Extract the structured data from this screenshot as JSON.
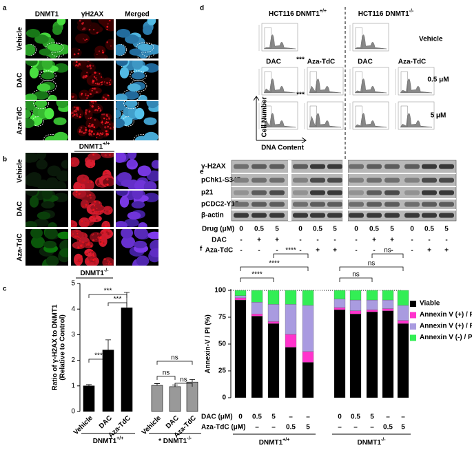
{
  "panel_labels": [
    "a",
    "b",
    "c",
    "d",
    "e",
    "f"
  ],
  "panel_a": {
    "columns": [
      "DNMT1",
      "γH2AX",
      "Merged"
    ],
    "rows": [
      "Vehicle",
      "DAC",
      "Aza-TdC"
    ],
    "caption": {
      "base": "DNMT1",
      "sup": "+/+"
    }
  },
  "panel_b": {
    "rows": [
      "Vehicle",
      "DAC",
      "Aza-TdC"
    ],
    "caption": {
      "base": "DNMT1",
      "sup": "-/-"
    }
  },
  "chart_data": [
    {
      "type": "bar",
      "y_label": "Ratio of γ-H2AX to DNMT1",
      "y_label_2": "(Relative to Control)",
      "categories": [
        "Vehicle",
        "DAC",
        "Aza-TdC",
        "Vehicle",
        "DAC",
        "Aza-TdC"
      ],
      "values": [
        1.0,
        2.4,
        4.05,
        1.02,
        0.97,
        1.15
      ],
      "errors": [
        0.05,
        0.4,
        0.6,
        0.07,
        0.06,
        0.1
      ],
      "colors": [
        "#000000",
        "#000000",
        "#000000",
        "#999999",
        "#999999",
        "#999999"
      ],
      "ylim": [
        0,
        5
      ],
      "yticks": [
        0,
        1,
        2,
        3,
        4,
        5
      ],
      "groups": [
        {
          "base": "DNMT1",
          "sup": "+/+"
        },
        {
          "base": "* DNMT1",
          "sup": "-/-"
        }
      ],
      "annotations": [
        "***",
        "***",
        "***",
        "ns",
        "ns",
        "ns"
      ]
    },
    {
      "type": "stacked_bar",
      "y_label": "Annexin-V / PI (%)",
      "ylim": [
        0,
        100
      ],
      "yticks": [
        0,
        25,
        50,
        75,
        100
      ],
      "series": [
        {
          "name": "Viable",
          "color": "#000000",
          "values": [
            91,
            76,
            69,
            47,
            33,
            82,
            78,
            80,
            81,
            69
          ]
        },
        {
          "name": "Annexin V (+) / PI (-)",
          "color": "#ff33cc",
          "values": [
            2,
            2,
            2,
            12,
            10,
            2,
            3,
            2,
            2,
            3
          ]
        },
        {
          "name": "Annexin V (+) / PI (+)",
          "color": "#a99be0",
          "values": [
            2,
            11,
            16,
            28,
            43,
            8,
            10,
            9,
            8,
            14
          ]
        },
        {
          "name": "Annexin V (-) / PI (+)",
          "color": "#33ee55",
          "values": [
            5,
            11,
            13,
            13,
            14,
            8,
            9,
            9,
            9,
            14
          ]
        }
      ],
      "rows": [
        {
          "label": "DAC (μM)",
          "values": [
            "0",
            "0.5",
            "5",
            "–",
            "–",
            "0",
            "0.5",
            "5",
            "–",
            "–"
          ]
        },
        {
          "label": "Aza-TdC (μM)",
          "values": [
            "–",
            "–",
            "–",
            "0.5",
            "5",
            "–",
            "–",
            "–",
            "0.5",
            "5"
          ]
        }
      ],
      "groups": [
        {
          "base": "DNMT1",
          "sup": "+/+"
        },
        {
          "base": "DNMT1",
          "sup": "-/-"
        }
      ],
      "annotations": [
        "****",
        "****",
        "****",
        "ns",
        "ns",
        "ns"
      ]
    }
  ],
  "panel_d": {
    "titles": [
      {
        "base": "HCT116 DNMT1",
        "sup": "+/+"
      },
      {
        "base": "HCT116 DNMT1",
        "sup": "-/-"
      }
    ],
    "row_labels": [
      "Vehicle",
      "0.5 μM",
      "5 μM"
    ],
    "drug_labels": [
      "DAC",
      "Aza-TdC",
      "DAC",
      "Aza-TdC"
    ],
    "significance": [
      "***",
      "***"
    ],
    "y_label": "Cell Number",
    "x_label": "DNA Content"
  },
  "panel_e": {
    "proteins": [
      "γ-H2AX",
      "pChk1-S345",
      "p21",
      "pCDC2-Y15",
      "β-actin"
    ],
    "conditions": [
      {
        "label": "Drug (μM)",
        "values": [
          "0",
          "0.5",
          "5",
          "0",
          "0.5",
          "5",
          "0",
          "0.5",
          "5",
          "0",
          "0.5",
          "5"
        ]
      },
      {
        "label": "DAC",
        "values": [
          "-",
          "+",
          "+",
          "-",
          "-",
          "-",
          "-",
          "+",
          "+",
          "-",
          "-",
          "-"
        ]
      },
      {
        "label": "Aza-TdC",
        "values": [
          "-",
          "-",
          "-",
          "-",
          "+",
          "+",
          "-",
          "-",
          "-",
          "-",
          "+",
          "+"
        ]
      }
    ]
  }
}
